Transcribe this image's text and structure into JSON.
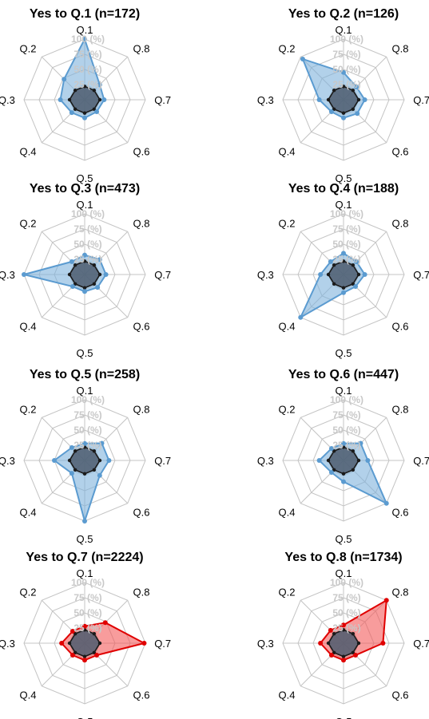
{
  "chart_data": {
    "type": "radar",
    "axis_labels": [
      "Q.1",
      "Q.8",
      "Q.7",
      "Q.6",
      "Q.5",
      "Q.4",
      "Q.3",
      "Q.2"
    ],
    "tick_labels": [
      "100 (%)",
      "75 (%)",
      "50 (%)",
      "25 (%)"
    ],
    "range": [
      0,
      100
    ],
    "rings": 4,
    "colors": {
      "blue_fill": "#7fb3dc",
      "blue_line": "#5b9bd0",
      "red_fill": "#f45a5a",
      "red_line": "#e00000",
      "base_fill": "#4c5c6e",
      "base_line": "#1a1a1a"
    },
    "baseline": {
      "Q.1": 22,
      "Q.8": 22,
      "Q.7": 25,
      "Q.6": 22,
      "Q.5": 22,
      "Q.4": 22,
      "Q.3": 25,
      "Q.2": 22
    },
    "panels": [
      {
        "title": "Yes to Q.1 (n=172)",
        "color": "blue",
        "values": {
          "Q.1": 100,
          "Q.8": 35,
          "Q.7": 32,
          "Q.6": 28,
          "Q.5": 30,
          "Q.4": 30,
          "Q.3": 40,
          "Q.2": 48
        }
      },
      {
        "title": "Yes to Q.2 (n=126)",
        "color": "blue",
        "values": {
          "Q.1": 45,
          "Q.8": 30,
          "Q.7": 35,
          "Q.6": 32,
          "Q.5": 30,
          "Q.4": 28,
          "Q.3": 40,
          "Q.2": 95
        }
      },
      {
        "title": "Yes to Q.3 (n=473)",
        "color": "blue",
        "values": {
          "Q.1": 32,
          "Q.8": 35,
          "Q.7": 35,
          "Q.6": 30,
          "Q.5": 28,
          "Q.4": 28,
          "Q.3": 100,
          "Q.2": 30
        }
      },
      {
        "title": "Yes to Q.4 (n=188)",
        "color": "blue",
        "values": {
          "Q.1": 35,
          "Q.8": 30,
          "Q.7": 35,
          "Q.6": 28,
          "Q.5": 30,
          "Q.4": 100,
          "Q.3": 38,
          "Q.2": 30
        }
      },
      {
        "title": "Yes to Q.5 (n=258)",
        "color": "blue",
        "values": {
          "Q.1": 28,
          "Q.8": 40,
          "Q.7": 40,
          "Q.6": 35,
          "Q.5": 100,
          "Q.4": 30,
          "Q.3": 50,
          "Q.2": 30
        }
      },
      {
        "title": "Yes to Q.6 (n=447)",
        "color": "blue",
        "values": {
          "Q.1": 28,
          "Q.8": 40,
          "Q.7": 40,
          "Q.6": 100,
          "Q.5": 35,
          "Q.4": 28,
          "Q.3": 40,
          "Q.2": 28
        }
      },
      {
        "title": "Yes to Q.7 (n=2224)",
        "color": "red",
        "values": {
          "Q.1": 28,
          "Q.8": 48,
          "Q.7": 98,
          "Q.6": 28,
          "Q.5": 28,
          "Q.4": 28,
          "Q.3": 38,
          "Q.2": 28
        }
      },
      {
        "title": "Yes to Q.8 (n=1734)",
        "color": "red",
        "values": {
          "Q.1": 30,
          "Q.8": 100,
          "Q.7": 65,
          "Q.6": 28,
          "Q.5": 28,
          "Q.4": 28,
          "Q.3": 38,
          "Q.2": 30
        }
      }
    ]
  }
}
